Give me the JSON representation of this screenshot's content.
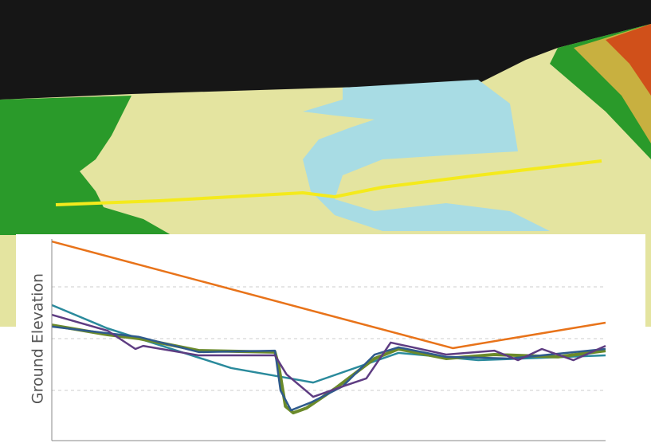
{
  "chart_data": {
    "type": "line",
    "y_label": "Ground Elevation",
    "xlim": [
      0,
      100
    ],
    "ylim": [
      0,
      100
    ],
    "yticks": [
      25,
      50,
      75
    ],
    "grid": true,
    "series": [
      {
        "color": "#e8731a",
        "x": [
          0,
          72.4,
          100
        ],
        "values": [
          96.9,
          45.4,
          57.7
        ]
      },
      {
        "color": "#2a8a9c",
        "x": [
          0,
          10,
          32.4,
          47.2,
          62.6,
          77,
          100
        ],
        "values": [
          66.2,
          55,
          35.8,
          28.8,
          43.1,
          39.6,
          41.9
        ]
      },
      {
        "color": "#6b8a2a",
        "x": [
          0,
          10.1,
          15.8,
          26.6,
          40.3,
          41,
          42.2,
          43.6,
          46,
          51.1,
          58.3,
          62.6,
          71.2,
          79.9,
          91.4,
          100
        ],
        "values": [
          56.5,
          51.9,
          50,
          44.2,
          43.5,
          36.5,
          17.3,
          14.2,
          16.5,
          25.8,
          40.4,
          45,
          40.4,
          42.3,
          41.2,
          44.2
        ]
      },
      {
        "color": "#2e5a8c",
        "x": [
          0,
          15.8,
          26.6,
          40.3,
          41.3,
          43.2,
          46.8,
          52.5,
          58.3,
          62.6,
          71.2,
          82.7,
          100
        ],
        "values": [
          55.8,
          50.8,
          43.5,
          44.2,
          25,
          15.4,
          19.2,
          26.9,
          42.3,
          45.8,
          41.2,
          40.4,
          45
        ]
      },
      {
        "color": "#5e3c82",
        "x": [
          0,
          10.1,
          15.1,
          16.5,
          26.6,
          40.3,
          42.4,
          47.2,
          52.5,
          56.8,
          61.2,
          71.2,
          79.9,
          84.2,
          88.5,
          94.2,
          100
        ],
        "values": [
          61.5,
          53.8,
          45,
          46.5,
          41.9,
          41.9,
          32.7,
          21.9,
          26.9,
          30.8,
          48.1,
          42.3,
          44.2,
          39.6,
          45,
          39.6,
          46.5
        ]
      }
    ]
  }
}
